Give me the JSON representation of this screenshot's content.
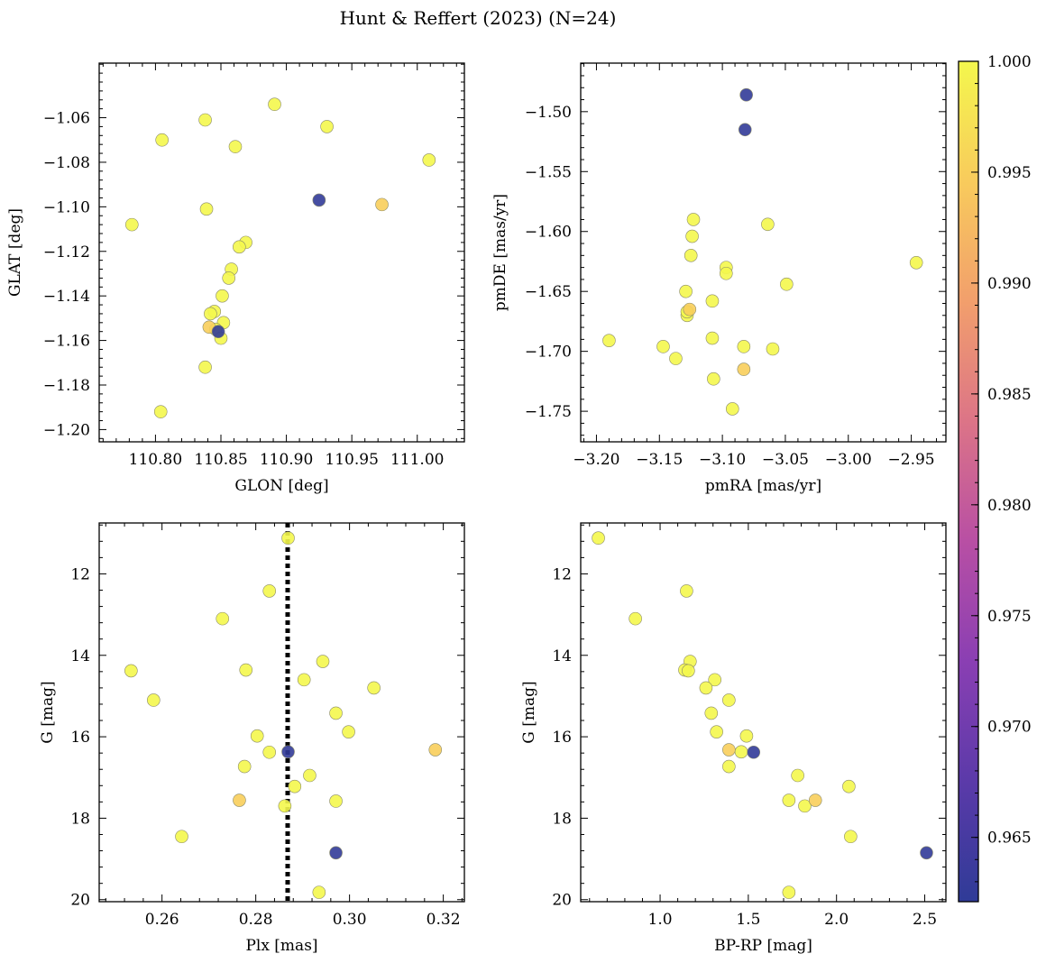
{
  "figure": {
    "title": "Hunt & Reffert (2023) (N=24)"
  },
  "colorbar": {
    "min": 0.9621,
    "max": 1.0,
    "ticks": [
      0.965,
      0.97,
      0.975,
      0.98,
      0.985,
      0.99,
      0.995,
      1.0
    ],
    "tick_labels": [
      "0.965",
      "0.970",
      "0.975",
      "0.980",
      "0.985",
      "0.990",
      "0.995",
      "1.000"
    ],
    "colormap": "plasma",
    "colors": [
      "#2f3b97",
      "#5b3aa9",
      "#8a3fb3",
      "#b84fa4",
      "#dc7487",
      "#f29f6c",
      "#f8cb5c",
      "#f4f74d"
    ]
  },
  "chart_data": [
    {
      "type": "scatter",
      "name": "position",
      "xlabel": "GLON [deg]",
      "ylabel": "GLAT [deg]",
      "xlim": [
        110.757,
        111.036
      ],
      "ylim": [
        -1.2055,
        -1.0355
      ],
      "xticks": [
        110.8,
        110.85,
        110.9,
        110.95,
        111.0
      ],
      "xtick_labels": [
        "110.80",
        "110.85",
        "110.90",
        "110.95",
        "111.00"
      ],
      "yticks": [
        -1.06,
        -1.08,
        -1.1,
        -1.12,
        -1.14,
        -1.16,
        -1.18,
        -1.2
      ],
      "ytick_labels": [
        "−1.06",
        "−1.08",
        "−1.10",
        "−1.12",
        "−1.14",
        "−1.16",
        "−1.18",
        "−1.20"
      ],
      "x": [
        110.891,
        110.931,
        110.838,
        110.805,
        110.861,
        111.009,
        110.925,
        110.973,
        110.782,
        110.839,
        110.869,
        110.864,
        110.858,
        110.856,
        110.851,
        110.845,
        110.842,
        110.852,
        110.848,
        110.841,
        110.846,
        110.85,
        110.838,
        110.804
      ],
      "y": [
        -1.054,
        -1.064,
        -1.061,
        -1.07,
        -1.073,
        -1.079,
        -1.097,
        -1.099,
        -1.108,
        -1.101,
        -1.116,
        -1.118,
        -1.128,
        -1.132,
        -1.14,
        -1.147,
        -1.148,
        -1.152,
        -1.156,
        -1.154,
        -1.155,
        -1.159,
        -1.172,
        -1.192
      ],
      "c": [
        1.0,
        1.0,
        1.0,
        1.0,
        1.0,
        1.0,
        0.9625,
        0.995,
        1.0,
        1.0,
        1.0,
        1.0,
        1.0,
        1.0,
        1.0,
        1.0,
        1.0,
        1.0,
        0.9625,
        0.995,
        1.0,
        1.0,
        1.0,
        1.0
      ]
    },
    {
      "type": "scatter",
      "name": "proper-motion",
      "xlabel": "pmRA [mas/yr]",
      "ylabel": "pmDE [mas/yr]",
      "xlim": [
        -3.2125,
        -2.9225
      ],
      "ylim": [
        -1.7755,
        -1.4595
      ],
      "xticks": [
        -3.2,
        -3.15,
        -3.1,
        -3.05,
        -3.0,
        -2.95
      ],
      "xtick_labels": [
        "−3.20",
        "−3.15",
        "−3.10",
        "−3.05",
        "−3.00",
        "−2.95"
      ],
      "yticks": [
        -1.5,
        -1.55,
        -1.6,
        -1.65,
        -1.7,
        -1.75
      ],
      "ytick_labels": [
        "−1.50",
        "−1.55",
        "−1.60",
        "−1.65",
        "−1.70",
        "−1.75"
      ],
      "x": [
        -3.081,
        -3.082,
        -3.123,
        -3.124,
        -3.064,
        -3.125,
        -2.946,
        -3.097,
        -3.097,
        -3.049,
        -3.129,
        -3.108,
        -3.126,
        -3.128,
        -3.108,
        -3.19,
        -3.147,
        -3.083,
        -3.06,
        -3.137,
        -3.083,
        -3.107,
        -3.092,
        -3.128
      ],
      "y": [
        -1.486,
        -1.515,
        -1.59,
        -1.604,
        -1.594,
        -1.62,
        -1.626,
        -1.63,
        -1.635,
        -1.644,
        -1.65,
        -1.658,
        -1.665,
        -1.67,
        -1.689,
        -1.691,
        -1.696,
        -1.696,
        -1.698,
        -1.706,
        -1.715,
        -1.723,
        -1.748,
        -1.667
      ],
      "c": [
        0.9625,
        0.9625,
        1.0,
        1.0,
        1.0,
        1.0,
        1.0,
        1.0,
        1.0,
        1.0,
        1.0,
        1.0,
        0.995,
        1.0,
        1.0,
        1.0,
        1.0,
        1.0,
        1.0,
        1.0,
        0.995,
        1.0,
        1.0,
        1.0
      ]
    },
    {
      "type": "scatter",
      "name": "parallax-magnitude",
      "xlabel": "Plx [mas]",
      "ylabel": "G [mag]",
      "xlim": [
        0.2466,
        0.3245
      ],
      "ylim": [
        20.05,
        10.75
      ],
      "xticks": [
        0.26,
        0.28,
        0.3,
        0.32
      ],
      "xtick_labels": [
        "0.26",
        "0.28",
        "0.30",
        "0.32"
      ],
      "yticks": [
        12,
        14,
        16,
        18,
        20
      ],
      "ytick_labels": [
        "12",
        "14",
        "16",
        "18",
        "20"
      ],
      "vline": 0.2868,
      "x": [
        0.2869,
        0.2829,
        0.2729,
        0.2534,
        0.2779,
        0.2582,
        0.2903,
        0.2943,
        0.3052,
        0.2971,
        0.2998,
        0.2803,
        0.2829,
        0.2869,
        0.3183,
        0.2776,
        0.2915,
        0.2883,
        0.2765,
        0.2971,
        0.2862,
        0.2642,
        0.2971,
        0.2935
      ],
      "y": [
        11.12,
        12.42,
        13.1,
        14.38,
        14.36,
        15.1,
        14.6,
        14.15,
        14.8,
        15.42,
        15.88,
        15.98,
        16.38,
        16.37,
        16.32,
        16.73,
        16.95,
        17.22,
        17.56,
        17.58,
        17.7,
        18.45,
        18.85,
        19.82
      ],
      "c": [
        1.0,
        1.0,
        1.0,
        1.0,
        1.0,
        1.0,
        1.0,
        1.0,
        1.0,
        1.0,
        1.0,
        1.0,
        1.0,
        0.9625,
        0.995,
        1.0,
        1.0,
        1.0,
        0.995,
        1.0,
        1.0,
        1.0,
        0.9625,
        1.0
      ]
    },
    {
      "type": "scatter",
      "name": "color-magnitude",
      "xlabel": "BP-RP [mag]",
      "ylabel": "G [mag]",
      "xlim": [
        0.55,
        2.62
      ],
      "ylim": [
        20.05,
        10.75
      ],
      "xticks": [
        1.0,
        1.5,
        2.0,
        2.5
      ],
      "xtick_labels": [
        "1.0",
        "1.5",
        "2.0",
        "2.5"
      ],
      "yticks": [
        12,
        14,
        16,
        18,
        20
      ],
      "ytick_labels": [
        "12",
        "14",
        "16",
        "18",
        "20"
      ],
      "x": [
        0.65,
        1.15,
        0.86,
        1.17,
        1.14,
        1.16,
        1.31,
        1.26,
        1.39,
        1.29,
        1.32,
        1.49,
        1.46,
        1.39,
        1.53,
        1.39,
        1.78,
        2.07,
        1.73,
        1.82,
        1.88,
        2.08,
        2.51,
        1.73
      ],
      "y": [
        11.12,
        12.42,
        13.1,
        14.15,
        14.36,
        14.38,
        14.6,
        14.8,
        15.1,
        15.42,
        15.88,
        15.98,
        16.37,
        16.32,
        16.38,
        16.73,
        16.95,
        17.22,
        17.56,
        17.7,
        17.56,
        18.45,
        18.85,
        19.82
      ],
      "c": [
        1.0,
        1.0,
        1.0,
        1.0,
        1.0,
        1.0,
        1.0,
        1.0,
        1.0,
        1.0,
        1.0,
        1.0,
        1.0,
        0.995,
        0.9625,
        1.0,
        1.0,
        1.0,
        1.0,
        1.0,
        0.995,
        1.0,
        0.9625,
        1.0
      ]
    }
  ]
}
